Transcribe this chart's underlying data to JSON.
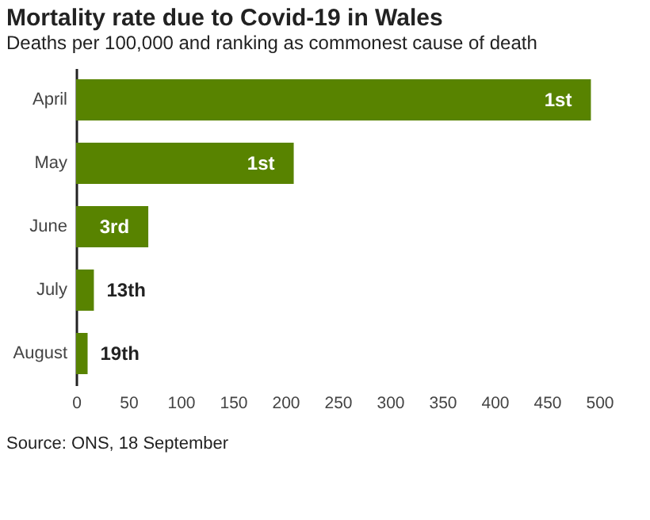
{
  "chart_data": {
    "type": "bar",
    "orientation": "horizontal",
    "title": "Mortality rate due to Covid-19 in Wales",
    "subtitle": "Deaths per 100,000 and ranking as commonest cause of death",
    "categories": [
      "April",
      "May",
      "June",
      "July",
      "August"
    ],
    "values": [
      492,
      208,
      69,
      17,
      11
    ],
    "color": "#588300",
    "xlim": [
      0,
      500
    ],
    "xticks": [
      0,
      50,
      100,
      150,
      200,
      250,
      300,
      350,
      400,
      450,
      500
    ],
    "grid": false,
    "annotations": [
      {
        "text": "1st",
        "x": 492,
        "y": "April"
      },
      {
        "text": "1st",
        "x": 208,
        "y": "May"
      },
      {
        "text": "3rd",
        "x": 69,
        "y": "June"
      },
      {
        "text": "13th",
        "x": 17,
        "y": "July"
      },
      {
        "text": "19th",
        "x": 11,
        "y": "August"
      },
      "Source: ONS, 18 September"
    ]
  }
}
